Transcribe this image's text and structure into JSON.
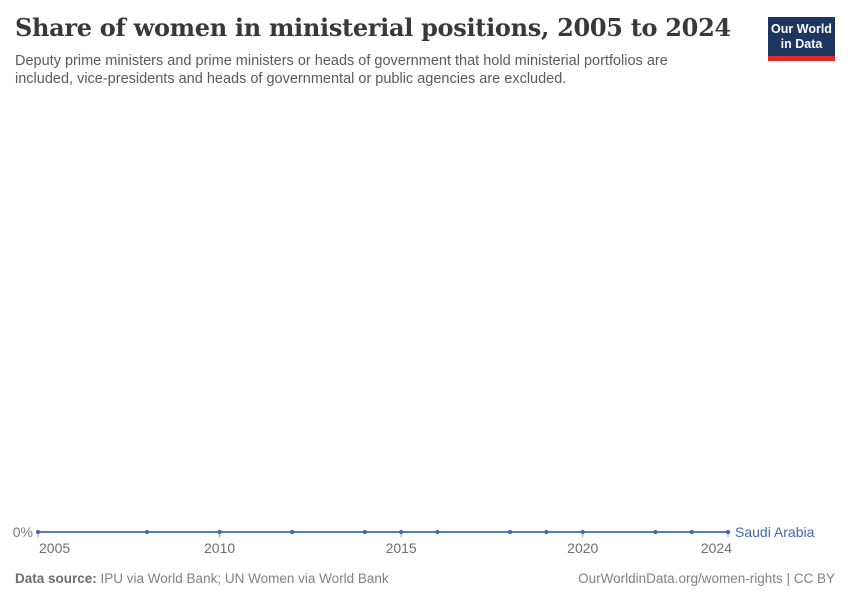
{
  "header": {
    "title": "Share of women in ministerial positions, 2005 to 2024",
    "subtitle": "Deputy prime ministers and prime ministers or heads of government that hold ministerial portfolios are included, vice-presidents and heads of governmental or public agencies are excluded.",
    "logo": {
      "line1": "Our World",
      "line2": "in Data"
    }
  },
  "footer": {
    "source_label": "Data source:",
    "source_text": " IPU via World Bank; UN Women via World Bank",
    "citation": "OurWorldinData.org/women-rights | CC BY"
  },
  "colors": {
    "logo_navy": "#1d3660",
    "logo_red": "#dd2a27",
    "line_blue": "#4268b1",
    "tick_gray": "#a5a5a5"
  },
  "chart_data": {
    "type": "line",
    "title": "Share of women in ministerial positions, 2005 to 2024",
    "xlabel": "",
    "ylabel": "",
    "unit": "%",
    "xlim": [
      2005,
      2024
    ],
    "ylim": [
      0,
      0
    ],
    "grid": "off",
    "legend": "inline-right-of-line",
    "x_ticks": [
      2005,
      2010,
      2015,
      2020,
      2024
    ],
    "y_ticks": [
      "0%"
    ],
    "series": [
      {
        "name": "Saudi Arabia",
        "color": "#4268b1",
        "points": [
          [
            2005,
            0
          ],
          [
            2008,
            0
          ],
          [
            2010,
            0
          ],
          [
            2012,
            0
          ],
          [
            2014,
            0
          ],
          [
            2015,
            0
          ],
          [
            2016,
            0
          ],
          [
            2018,
            0
          ],
          [
            2019,
            0
          ],
          [
            2020,
            0
          ],
          [
            2022,
            0
          ],
          [
            2023,
            0
          ],
          [
            2024,
            0
          ]
        ]
      }
    ]
  }
}
